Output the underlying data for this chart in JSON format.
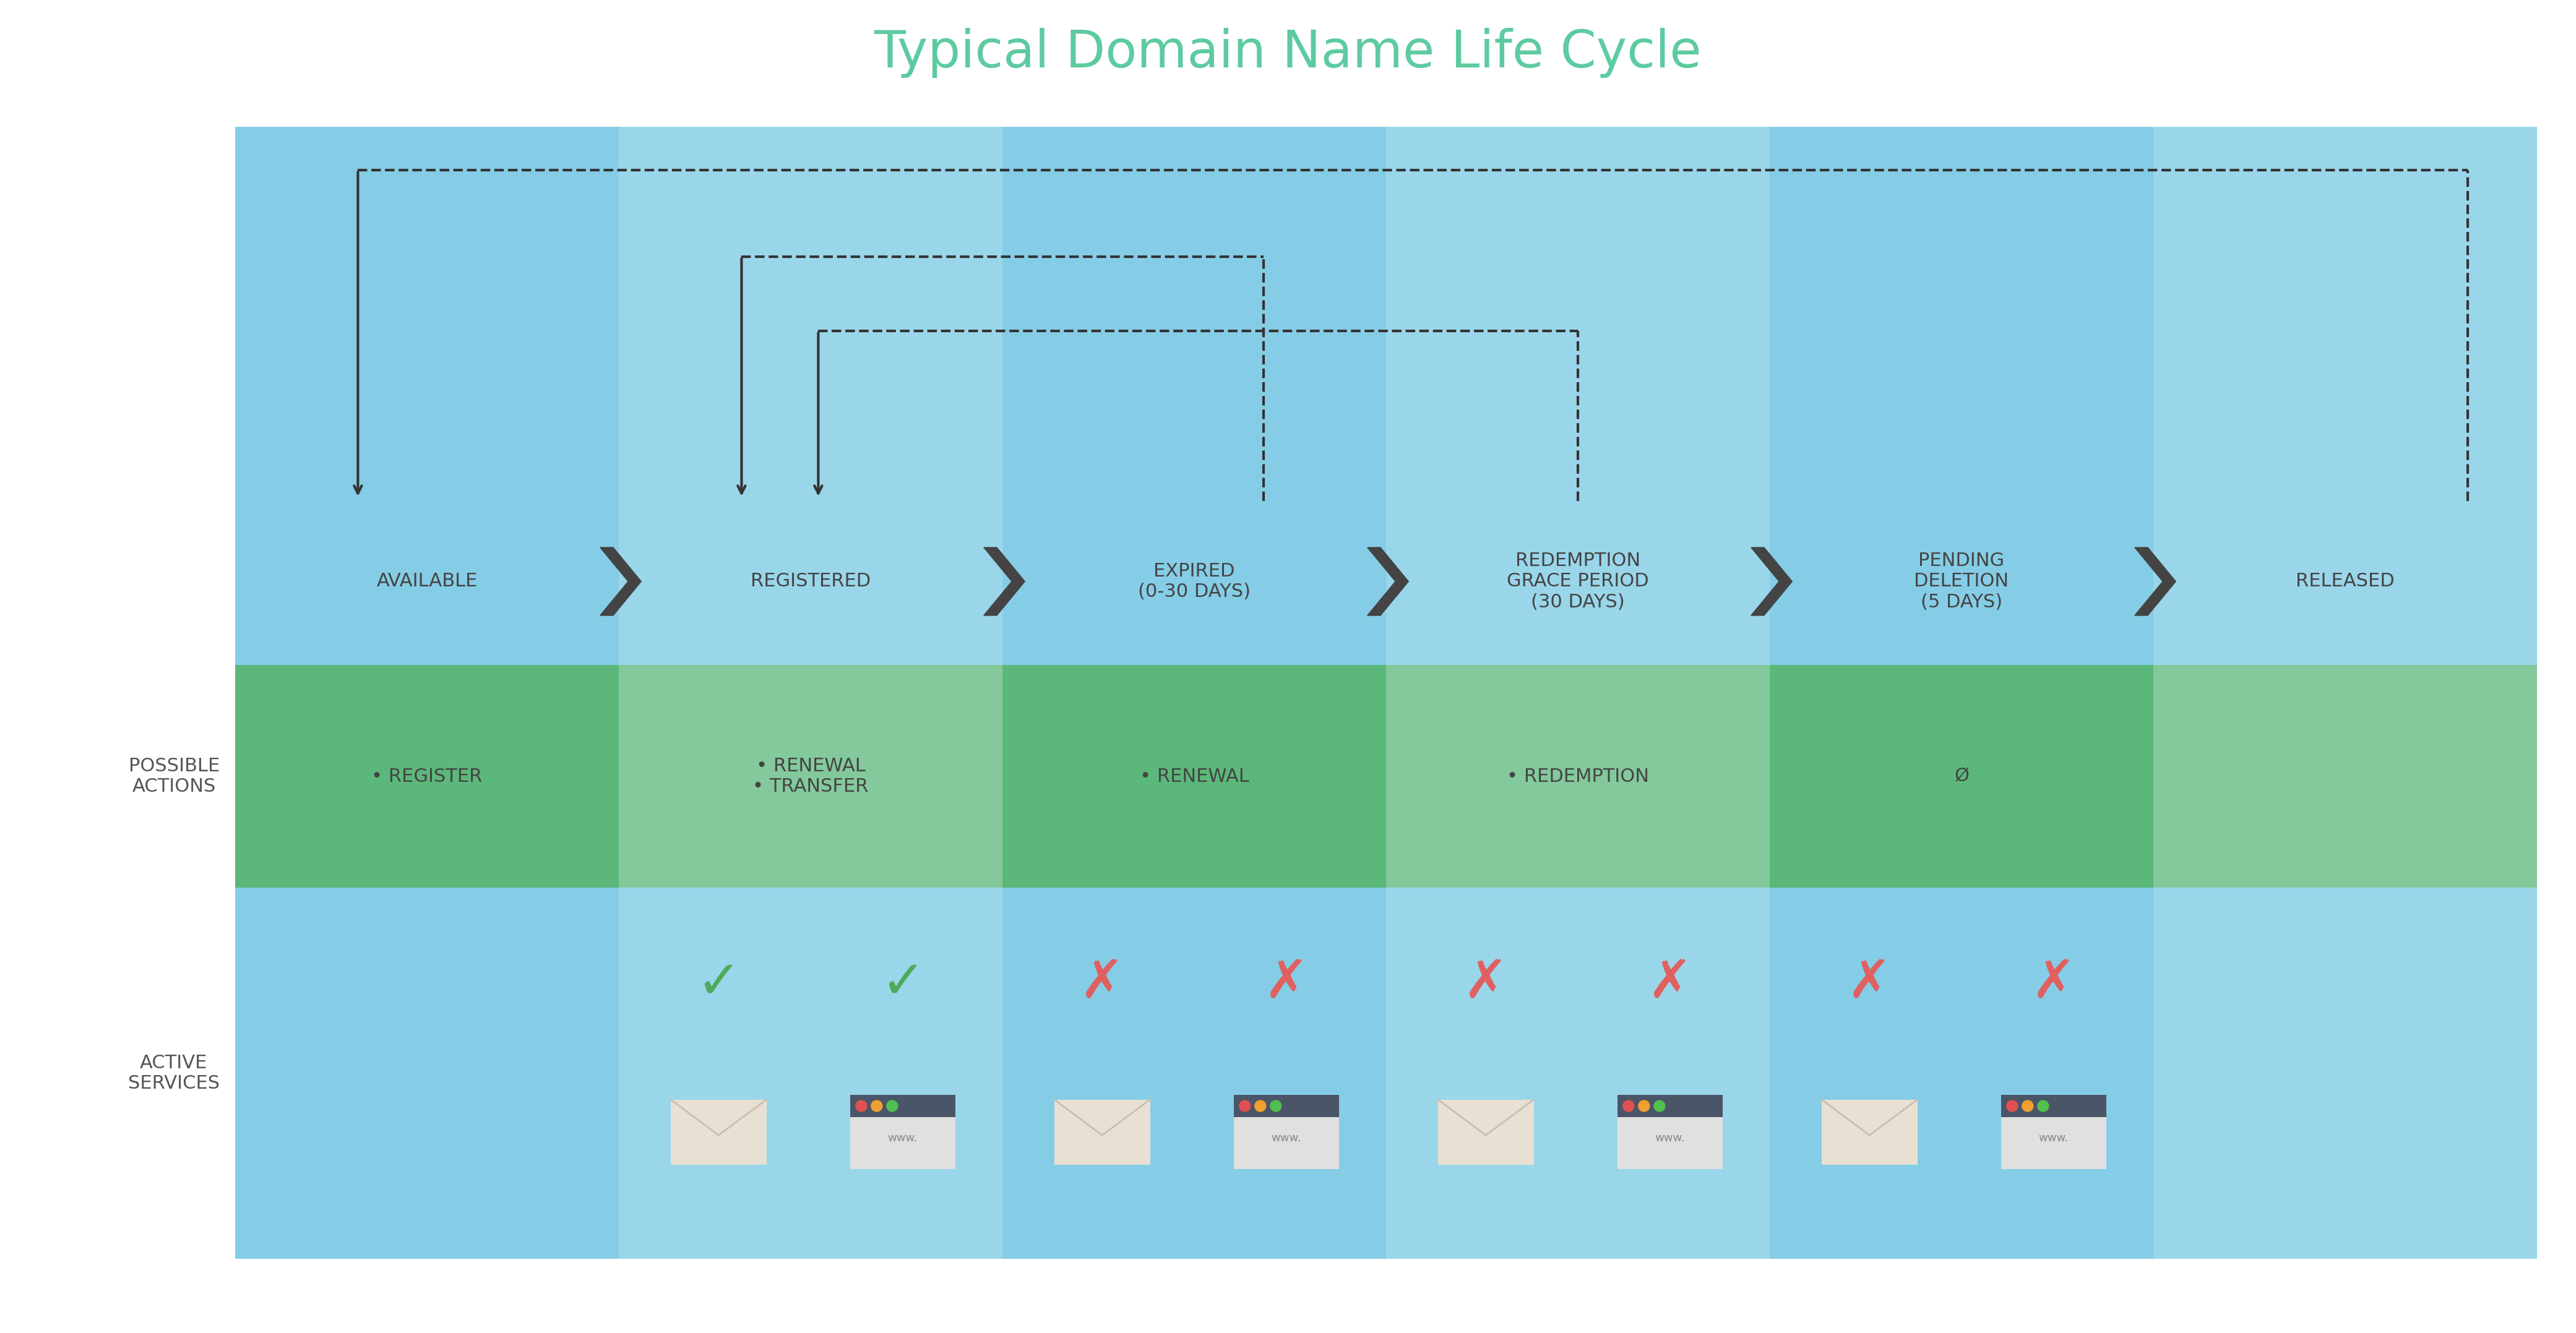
{
  "title": "Typical Domain Name Life Cycle",
  "title_color": "#5dcba0",
  "title_fontsize": 60,
  "bg_color": "#ffffff",
  "main_bg": "#85cde6",
  "col_light": "#a8ddf0",
  "col_dark": "#72c0dd",
  "green_bg": "#5cb87a",
  "green_light": "#7dd09a",
  "green_dark": "#4eaa6c",
  "stages": [
    "AVAILABLE",
    "REGISTERED",
    "EXPIRED\n(0-30 DAYS)",
    "REDEMPTION\nGRACE PERIOD\n(30 DAYS)",
    "PENDING\nDELETION\n(5 DAYS)",
    "RELEASED"
  ],
  "actions": [
    "• REGISTER",
    "• RENEWAL\n• TRANSFER",
    "• RENEWAL",
    "• REDEMPTION",
    "Ø",
    ""
  ],
  "arrow_color": "#444444",
  "dashed_color": "#333333",
  "check_color": "#4caa5a",
  "cross_color": "#e06060",
  "stage_fontsize": 22,
  "action_fontsize": 22,
  "label_fontsize": 22
}
